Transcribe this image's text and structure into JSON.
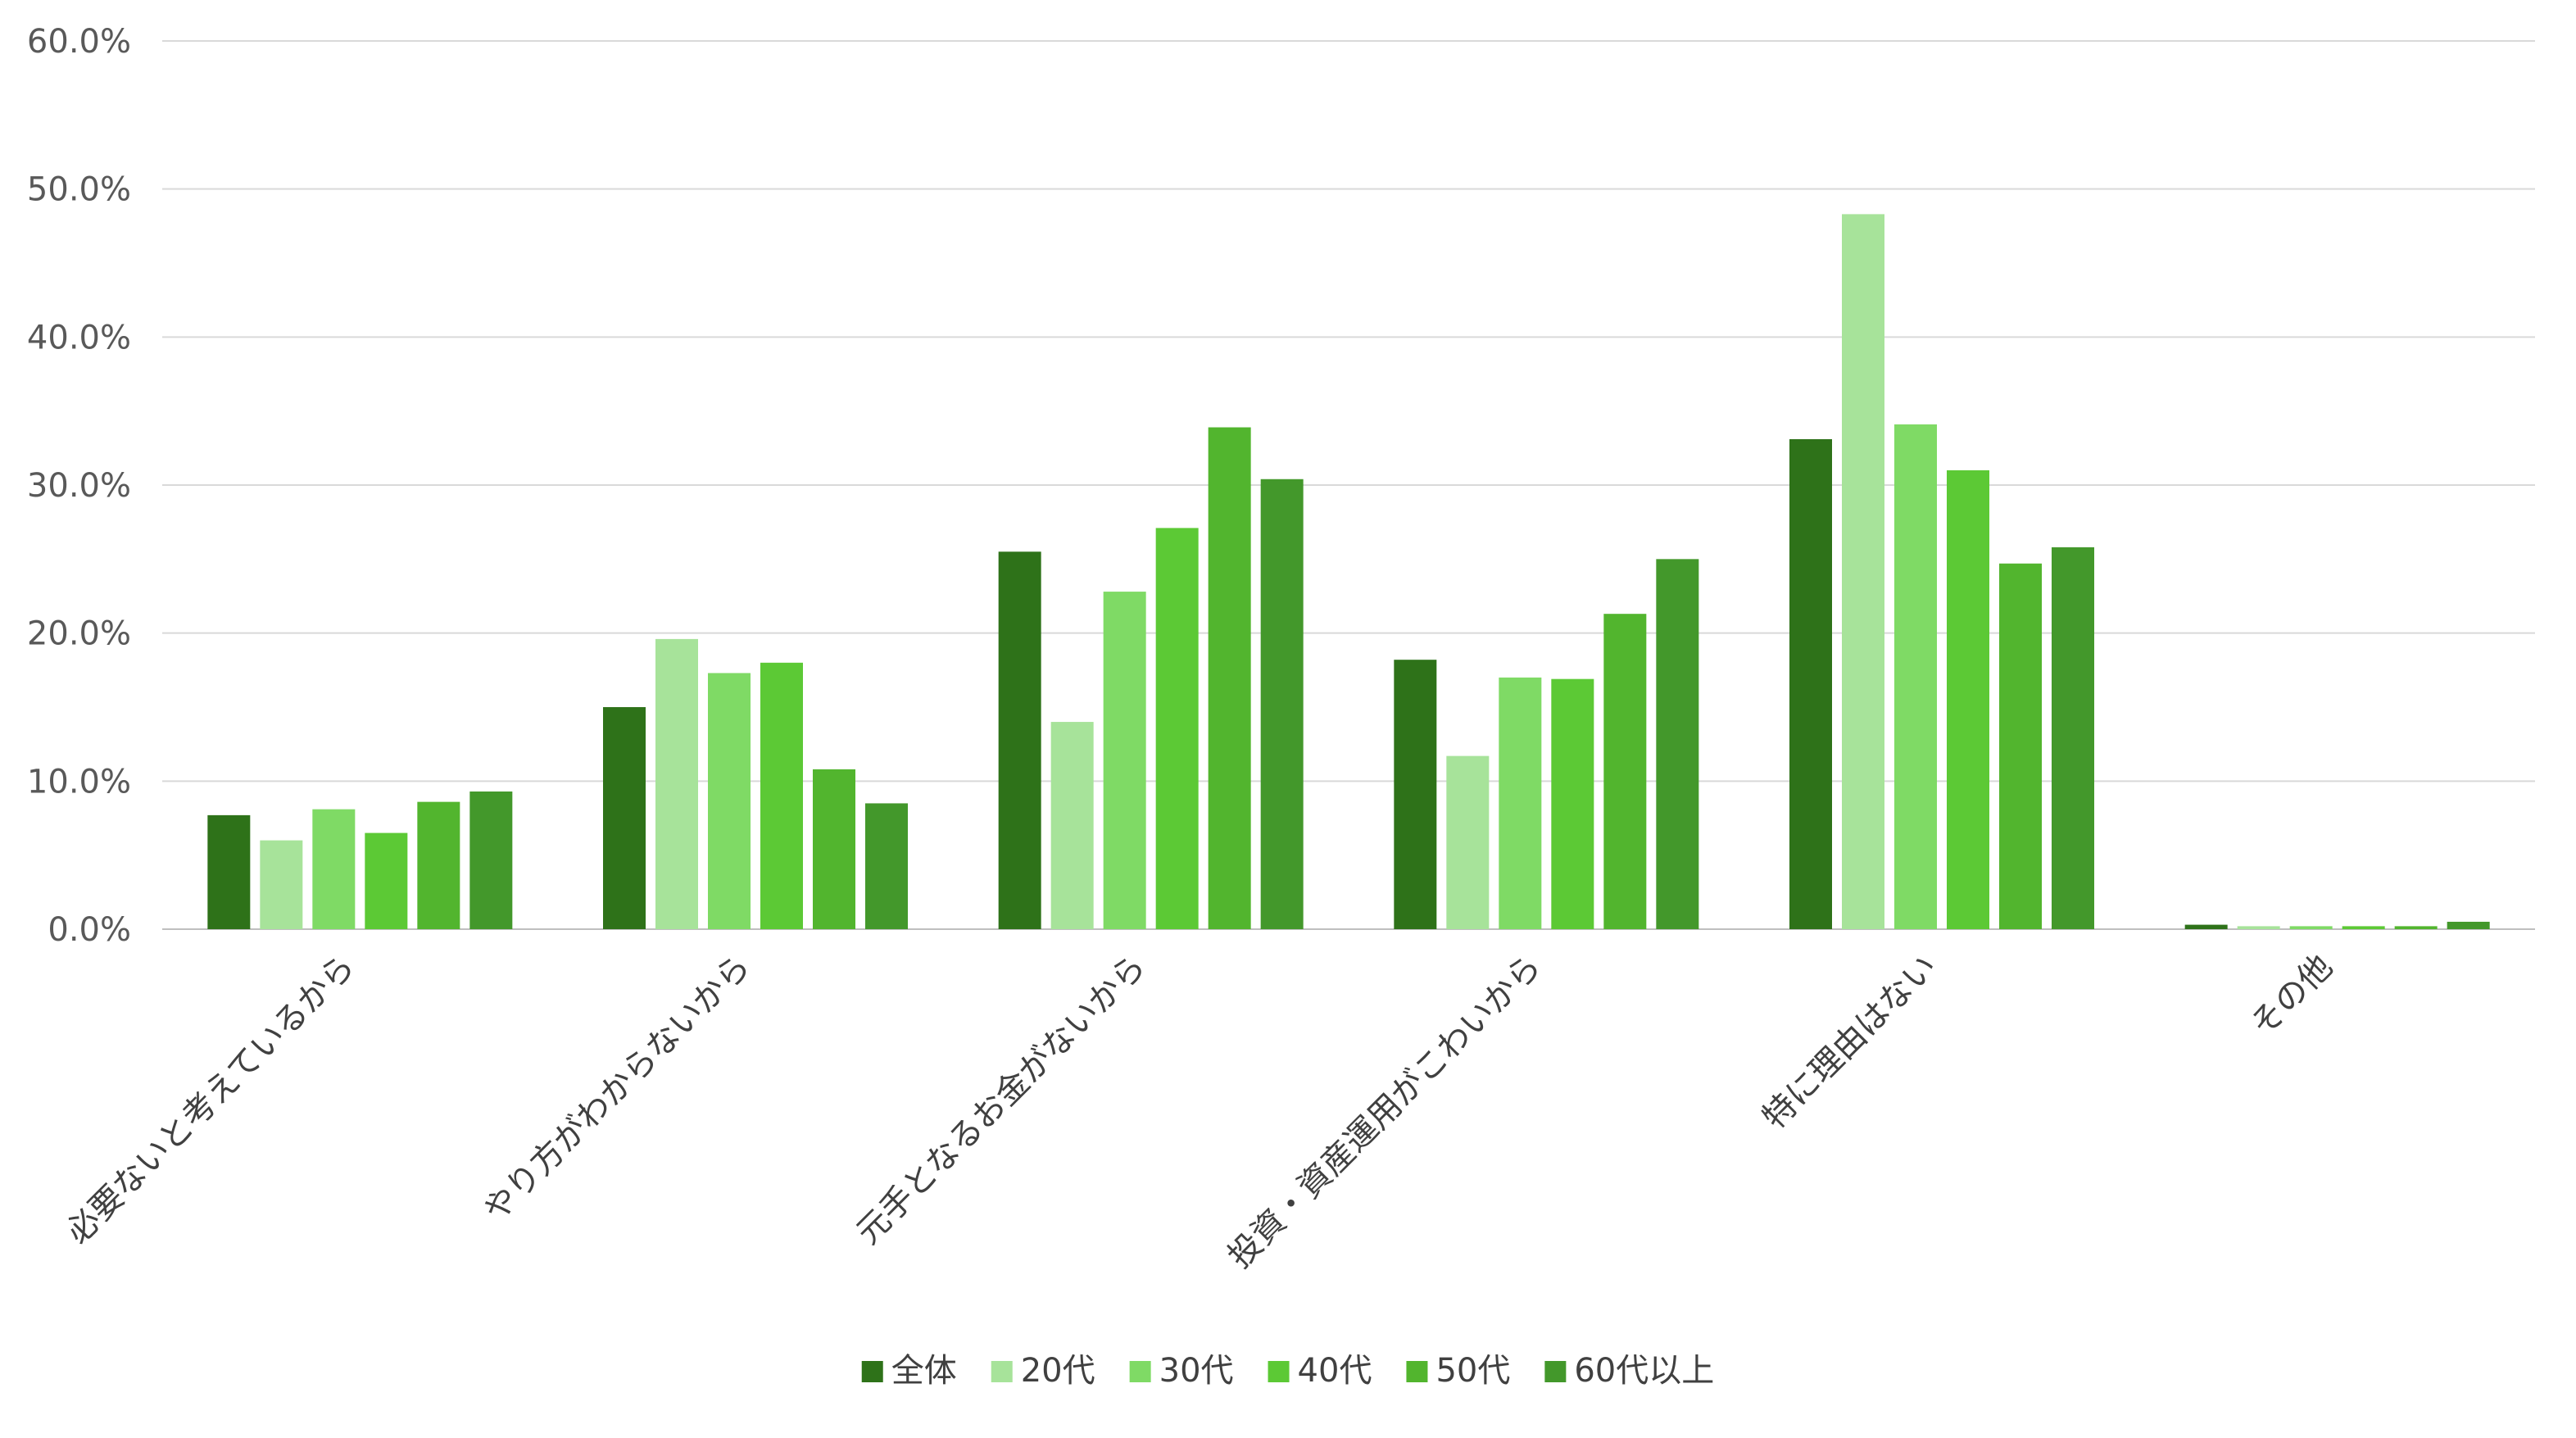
{
  "chart_data": {
    "type": "bar",
    "categories": [
      "必要ないと考えているから",
      "やり方がわからないから",
      "元手となるお金がないから",
      "投資・資産運用がこわいから",
      "特に理由はない",
      "その他"
    ],
    "series": [
      {
        "name": "全体",
        "color": "#2e7219",
        "values": [
          7.7,
          15.0,
          25.5,
          18.2,
          33.1,
          0.3
        ]
      },
      {
        "name": "20代",
        "color": "#a7e39a",
        "values": [
          6.0,
          19.6,
          14.0,
          11.7,
          48.3,
          0.2
        ]
      },
      {
        "name": "30代",
        "color": "#7fda65",
        "values": [
          8.1,
          17.3,
          22.8,
          17.0,
          34.1,
          0.2
        ]
      },
      {
        "name": "40代",
        "color": "#5cc935",
        "values": [
          6.5,
          18.0,
          27.1,
          16.9,
          31.0,
          0.2
        ]
      },
      {
        "name": "50代",
        "color": "#52b52e",
        "values": [
          8.6,
          10.8,
          33.9,
          21.3,
          24.7,
          0.2
        ]
      },
      {
        "name": "60代以上",
        "color": "#43982b",
        "values": [
          9.3,
          8.5,
          30.4,
          25.0,
          25.8,
          0.5
        ]
      }
    ],
    "y_ticks": [
      "0.0%",
      "10.0%",
      "20.0%",
      "30.0%",
      "40.0%",
      "50.0%",
      "60.0%"
    ],
    "ylim": [
      0,
      60
    ],
    "grid": true,
    "legend_position": "bottom"
  }
}
